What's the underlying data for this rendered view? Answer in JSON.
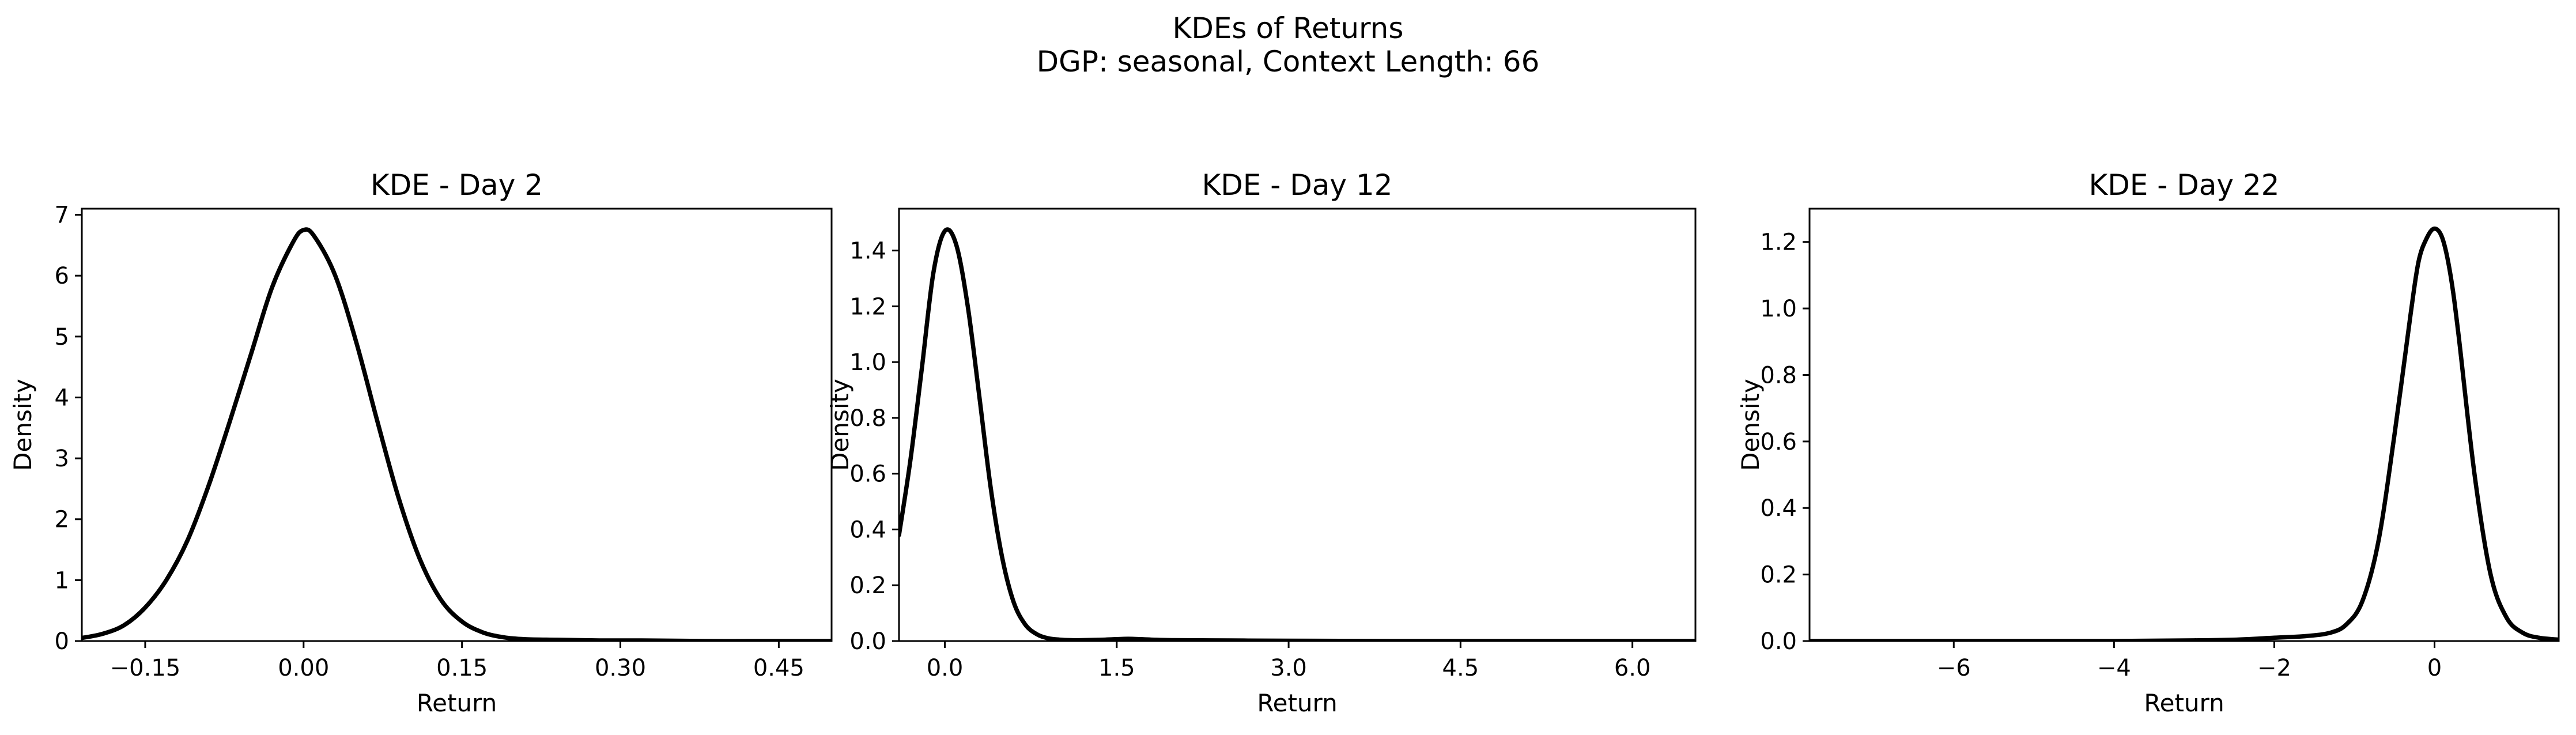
{
  "suptitle": {
    "line1": "KDEs of Returns",
    "line2": "DGP: seasonal, Context Length: 66"
  },
  "chart_data": [
    {
      "type": "line",
      "title": "KDE - Day 2",
      "xlabel": "Return",
      "ylabel": "Density",
      "xlim": [
        -0.21,
        0.5
      ],
      "ylim": [
        0,
        7.1
      ],
      "xticks": [
        -0.15,
        0.0,
        0.15,
        0.3,
        0.45
      ],
      "xtick_labels": [
        "−0.15",
        "0.00",
        "0.15",
        "0.30",
        "0.45"
      ],
      "yticks": [
        0,
        1,
        2,
        3,
        4,
        5,
        6,
        7
      ],
      "ytick_labels": [
        "0",
        "1",
        "2",
        "3",
        "4",
        "5",
        "6",
        "7"
      ],
      "grid": false,
      "color": "#000000",
      "series": [
        {
          "x": [
            -0.21,
            -0.19,
            -0.17,
            -0.15,
            -0.13,
            -0.11,
            -0.09,
            -0.07,
            -0.05,
            -0.03,
            -0.01,
            0.0,
            0.01,
            0.03,
            0.05,
            0.07,
            0.09,
            0.11,
            0.13,
            0.15,
            0.17,
            0.19,
            0.21,
            0.24,
            0.28,
            0.32,
            0.38,
            0.44,
            0.5
          ],
          "y": [
            0.05,
            0.12,
            0.26,
            0.55,
            1.0,
            1.65,
            2.55,
            3.6,
            4.7,
            5.8,
            6.55,
            6.75,
            6.65,
            6.0,
            4.9,
            3.6,
            2.35,
            1.35,
            0.68,
            0.32,
            0.14,
            0.06,
            0.03,
            0.02,
            0.01,
            0.01,
            0.0,
            0.0,
            0.0
          ]
        }
      ]
    },
    {
      "type": "line",
      "title": "KDE - Day 12",
      "xlabel": "Return",
      "ylabel": "Density",
      "xlim": [
        -0.4,
        6.55
      ],
      "ylim": [
        0,
        1.55
      ],
      "xticks": [
        0.0,
        1.5,
        3.0,
        4.5,
        6.0
      ],
      "xtick_labels": [
        "0.0",
        "1.5",
        "3.0",
        "4.5",
        "6.0"
      ],
      "yticks": [
        0.0,
        0.2,
        0.4,
        0.6,
        0.8,
        1.0,
        1.2,
        1.4
      ],
      "ytick_labels": [
        "0.0",
        "0.2",
        "0.4",
        "0.6",
        "0.8",
        "1.0",
        "1.2",
        "1.4"
      ],
      "grid": false,
      "color": "#000000",
      "series": [
        {
          "x": [
            -0.4,
            -0.3,
            -0.2,
            -0.1,
            0.0,
            0.1,
            0.2,
            0.3,
            0.4,
            0.5,
            0.6,
            0.7,
            0.8,
            0.9,
            1.0,
            1.1,
            1.2,
            1.4,
            1.6,
            1.8,
            2.0,
            2.5,
            3.0,
            4.0,
            5.0,
            6.0,
            6.55
          ],
          "y": [
            0.38,
            0.65,
            0.98,
            1.32,
            1.47,
            1.42,
            1.2,
            0.88,
            0.55,
            0.3,
            0.14,
            0.06,
            0.025,
            0.01,
            0.005,
            0.003,
            0.003,
            0.005,
            0.008,
            0.005,
            0.003,
            0.002,
            0.001,
            0.0,
            0.0,
            0.0,
            0.0
          ]
        }
      ]
    },
    {
      "type": "line",
      "title": "KDE - Day 22",
      "xlabel": "Return",
      "ylabel": "Density",
      "xlim": [
        -7.8,
        1.55
      ],
      "ylim": [
        0,
        1.3
      ],
      "xticks": [
        -6,
        -4,
        -2,
        0
      ],
      "xtick_labels": [
        "−6",
        "−4",
        "−2",
        "0"
      ],
      "yticks": [
        0.0,
        0.2,
        0.4,
        0.6,
        0.8,
        1.0,
        1.2
      ],
      "ytick_labels": [
        "0.0",
        "0.2",
        "0.4",
        "0.6",
        "0.8",
        "1.0",
        "1.2"
      ],
      "grid": false,
      "color": "#000000",
      "series": [
        {
          "x": [
            -7.8,
            -6.0,
            -4.0,
            -3.0,
            -2.5,
            -2.0,
            -1.6,
            -1.3,
            -1.1,
            -0.9,
            -0.7,
            -0.5,
            -0.3,
            -0.2,
            -0.1,
            0.0,
            0.1,
            0.2,
            0.3,
            0.5,
            0.7,
            0.9,
            1.1,
            1.3,
            1.55
          ],
          "y": [
            0.0,
            0.0,
            0.0,
            0.002,
            0.004,
            0.01,
            0.015,
            0.025,
            0.05,
            0.12,
            0.3,
            0.62,
            0.98,
            1.14,
            1.21,
            1.24,
            1.21,
            1.1,
            0.92,
            0.5,
            0.2,
            0.07,
            0.025,
            0.01,
            0.004
          ]
        }
      ]
    }
  ]
}
